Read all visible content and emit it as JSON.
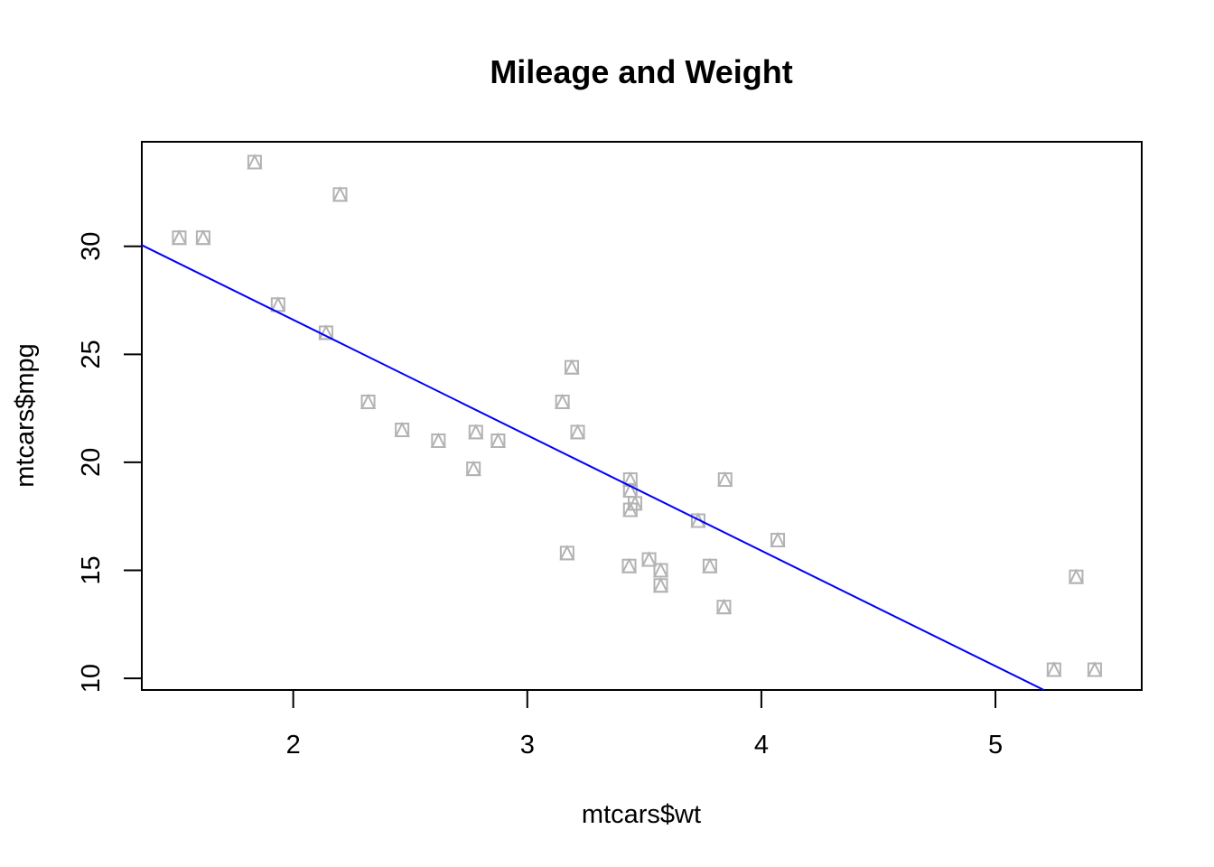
{
  "chart_data": {
    "type": "scatter",
    "title": "Mileage and Weight",
    "xlabel": "mtcars$wt",
    "ylabel": "mtcars$mpg",
    "xlim": [
      1.353,
      5.625
    ],
    "ylim": [
      9.46,
      34.84
    ],
    "x_ticks": [
      2,
      3,
      4,
      5
    ],
    "y_ticks": [
      10,
      15,
      20,
      25,
      30
    ],
    "x_tick_labels": [
      "2",
      "3",
      "4",
      "5"
    ],
    "y_tick_labels": [
      "10",
      "15",
      "20",
      "25",
      "30"
    ],
    "grid": false,
    "marker": "triangle-in-square",
    "point_color": "#b3b3b3",
    "line_color": "#0000ff",
    "series": [
      {
        "values": [
          {
            "x": 2.62,
            "y": 21.0
          },
          {
            "x": 2.875,
            "y": 21.0
          },
          {
            "x": 2.32,
            "y": 22.8
          },
          {
            "x": 3.215,
            "y": 21.4
          },
          {
            "x": 3.44,
            "y": 18.7
          },
          {
            "x": 3.46,
            "y": 18.1
          },
          {
            "x": 3.57,
            "y": 14.3
          },
          {
            "x": 3.19,
            "y": 24.4
          },
          {
            "x": 3.15,
            "y": 22.8
          },
          {
            "x": 3.44,
            "y": 19.2
          },
          {
            "x": 3.44,
            "y": 17.8
          },
          {
            "x": 4.07,
            "y": 16.4
          },
          {
            "x": 3.73,
            "y": 17.3
          },
          {
            "x": 3.78,
            "y": 15.2
          },
          {
            "x": 5.25,
            "y": 10.4
          },
          {
            "x": 5.424,
            "y": 10.4
          },
          {
            "x": 5.345,
            "y": 14.7
          },
          {
            "x": 2.2,
            "y": 32.4
          },
          {
            "x": 1.615,
            "y": 30.4
          },
          {
            "x": 1.835,
            "y": 33.9
          },
          {
            "x": 2.465,
            "y": 21.5
          },
          {
            "x": 3.52,
            "y": 15.5
          },
          {
            "x": 3.435,
            "y": 15.2
          },
          {
            "x": 3.84,
            "y": 13.3
          },
          {
            "x": 3.845,
            "y": 19.2
          },
          {
            "x": 1.935,
            "y": 27.3
          },
          {
            "x": 2.14,
            "y": 26.0
          },
          {
            "x": 1.513,
            "y": 30.4
          },
          {
            "x": 3.17,
            "y": 15.8
          },
          {
            "x": 2.77,
            "y": 19.7
          },
          {
            "x": 3.57,
            "y": 15.0
          },
          {
            "x": 2.78,
            "y": 21.4
          }
        ]
      }
    ],
    "regression_line": {
      "intercept": 37.285,
      "slope": -5.344
    }
  }
}
